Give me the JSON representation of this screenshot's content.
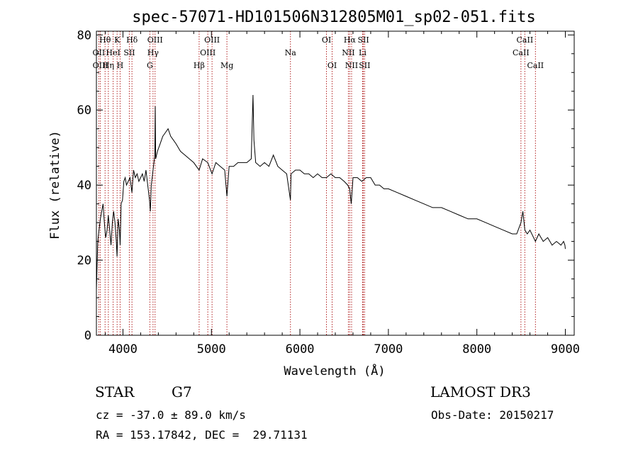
{
  "chart_data": {
    "type": "line",
    "title": "spec-57071-HD101506N312805M01_sp02-051.fits",
    "xlabel": "Wavelength (Å)",
    "ylabel": "Flux (relative)",
    "xlim": [
      3700,
      9100
    ],
    "ylim": [
      0,
      81
    ],
    "x_ticks": [
      4000,
      5000,
      6000,
      7000,
      8000,
      9000
    ],
    "y_ticks": [
      0,
      20,
      40,
      60,
      80
    ],
    "grid": false,
    "series": [
      {
        "color": "#000000",
        "x": [
          3700,
          3715,
          3730,
          3745,
          3760,
          3775,
          3790,
          3805,
          3820,
          3835,
          3850,
          3865,
          3880,
          3895,
          3910,
          3925,
          3933,
          3945,
          3960,
          3968,
          3980,
          3995,
          4010,
          4025,
          4040,
          4060,
          4080,
          4101,
          4120,
          4140,
          4160,
          4180,
          4200,
          4220,
          4240,
          4260,
          4280,
          4300,
          4310,
          4320,
          4340,
          4360,
          4365,
          4370,
          4390,
          4420,
          4450,
          4480,
          4510,
          4540,
          4570,
          4600,
          4650,
          4700,
          4750,
          4800,
          4861,
          4900,
          4959,
          5007,
          5050,
          5100,
          5150,
          5175,
          5200,
          5250,
          5300,
          5350,
          5400,
          5450,
          5470,
          5480,
          5500,
          5550,
          5600,
          5650,
          5700,
          5750,
          5800,
          5850,
          5893,
          5900,
          5950,
          6000,
          6050,
          6100,
          6150,
          6200,
          6250,
          6300,
          6350,
          6400,
          6450,
          6500,
          6540,
          6563,
          6580,
          6600,
          6650,
          6700,
          6750,
          6800,
          6850,
          6900,
          6950,
          7000,
          7100,
          7200,
          7300,
          7400,
          7500,
          7600,
          7700,
          7800,
          7900,
          8000,
          8100,
          8200,
          8300,
          8400,
          8450,
          8498,
          8520,
          8542,
          8570,
          8600,
          8662,
          8700,
          8750,
          8800,
          8850,
          8900,
          8950,
          8980,
          8995,
          9000
        ],
        "values": [
          12,
          25,
          28,
          31,
          33,
          35,
          30,
          26,
          28,
          32,
          28,
          24,
          30,
          33,
          30,
          25,
          21,
          31,
          28,
          24,
          35,
          36,
          41,
          42,
          40,
          41,
          42,
          38,
          44,
          42,
          43,
          41,
          42,
          43,
          41,
          44,
          40,
          36,
          33,
          40,
          44,
          48,
          61,
          47,
          49,
          51,
          53,
          54,
          55,
          53,
          52,
          51,
          49,
          48,
          47,
          46,
          44,
          47,
          46,
          43,
          46,
          45,
          44,
          37,
          45,
          45,
          46,
          46,
          46,
          47,
          64,
          52,
          46,
          45,
          46,
          45,
          48,
          45,
          44,
          43,
          36,
          43,
          44,
          44,
          43,
          43,
          42,
          43,
          42,
          42,
          43,
          42,
          42,
          41,
          40,
          39,
          35,
          42,
          42,
          41,
          42,
          42,
          40,
          40,
          39,
          39,
          38,
          37,
          36,
          35,
          34,
          34,
          33,
          32,
          31,
          31,
          30,
          29,
          28,
          27,
          27,
          30,
          33,
          28,
          27,
          28,
          25,
          27,
          25,
          26,
          24,
          25,
          24,
          25,
          24,
          23
        ]
      }
    ],
    "spectral_lines": [
      {
        "name": "Hθ",
        "wavelength": 3798,
        "row": 0
      },
      {
        "name": "K",
        "wavelength": 3934,
        "row": 0
      },
      {
        "name": "Hδ",
        "wavelength": 4102,
        "row": 0
      },
      {
        "name": "OIII",
        "wavelength": 4363,
        "row": 0
      },
      {
        "name": "OIII",
        "wavelength": 5007,
        "row": 0
      },
      {
        "name": "OI",
        "wavelength": 6300,
        "row": 0
      },
      {
        "name": "Hα",
        "wavelength": 6563,
        "row": 0
      },
      {
        "name": "SII",
        "wavelength": 6717,
        "row": 0
      },
      {
        "name": "CaII",
        "wavelength": 8542,
        "row": 0
      },
      {
        "name": "OII",
        "wavelength": 3727,
        "row": 1
      },
      {
        "name": "HeI",
        "wavelength": 3889,
        "row": 1
      },
      {
        "name": "SII",
        "wavelength": 4072,
        "row": 1
      },
      {
        "name": "Hγ",
        "wavelength": 4340,
        "row": 1
      },
      {
        "name": "OIII",
        "wavelength": 4959,
        "row": 1
      },
      {
        "name": "Na",
        "wavelength": 5893,
        "row": 1
      },
      {
        "name": "NII",
        "wavelength": 6548,
        "row": 1
      },
      {
        "name": "Li",
        "wavelength": 6708,
        "row": 1
      },
      {
        "name": "CaII",
        "wavelength": 8498,
        "row": 1
      },
      {
        "name": "OIII",
        "wavelength": 3745,
        "row": 2
      },
      {
        "name": "Hη",
        "wavelength": 3835,
        "row": 2
      },
      {
        "name": "H",
        "wavelength": 3968,
        "row": 2
      },
      {
        "name": "G",
        "wavelength": 4304,
        "row": 2
      },
      {
        "name": "Hβ",
        "wavelength": 4861,
        "row": 2
      },
      {
        "name": "Mg",
        "wavelength": 5175,
        "row": 2
      },
      {
        "name": "OI",
        "wavelength": 6364,
        "row": 2
      },
      {
        "name": "NII",
        "wavelength": 6584,
        "row": 2
      },
      {
        "name": "SII",
        "wavelength": 6731,
        "row": 2
      },
      {
        "name": "CaII",
        "wavelength": 8662,
        "row": 2
      }
    ],
    "marker_line_color": "#b22222"
  },
  "info": {
    "object_class": "STAR",
    "subclass": "G7",
    "survey": "LAMOST DR3",
    "redshift": "cz = -37.0 ± 89.0 km/s",
    "obs_date": "Obs-Date: 20150217",
    "coords": "RA = 153.17842, DEC =  29.71131"
  }
}
